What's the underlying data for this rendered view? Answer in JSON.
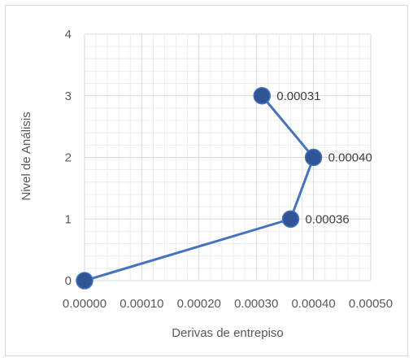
{
  "chart_data": {
    "type": "scatter",
    "title": "",
    "xlabel": "Derivas de entrepiso",
    "ylabel": "Nivel de Análisis",
    "xlim": [
      0,
      0.0005
    ],
    "ylim": [
      0,
      4
    ],
    "x_ticks": [
      "0.00000",
      "0.00010",
      "0.00020",
      "0.00030",
      "0.00040",
      "0.00050"
    ],
    "y_ticks": [
      "0",
      "1",
      "2",
      "3",
      "4"
    ],
    "grid": true,
    "legend": "none",
    "series": [
      {
        "x": [
          0,
          0.00036,
          0.0004,
          0.00031
        ],
        "y": [
          0,
          1,
          2,
          3
        ],
        "data_labels": [
          "",
          "0.00036",
          "0.00040",
          "0.00031"
        ],
        "color": "#4472c4",
        "marker_color": "#2f5597"
      }
    ]
  }
}
